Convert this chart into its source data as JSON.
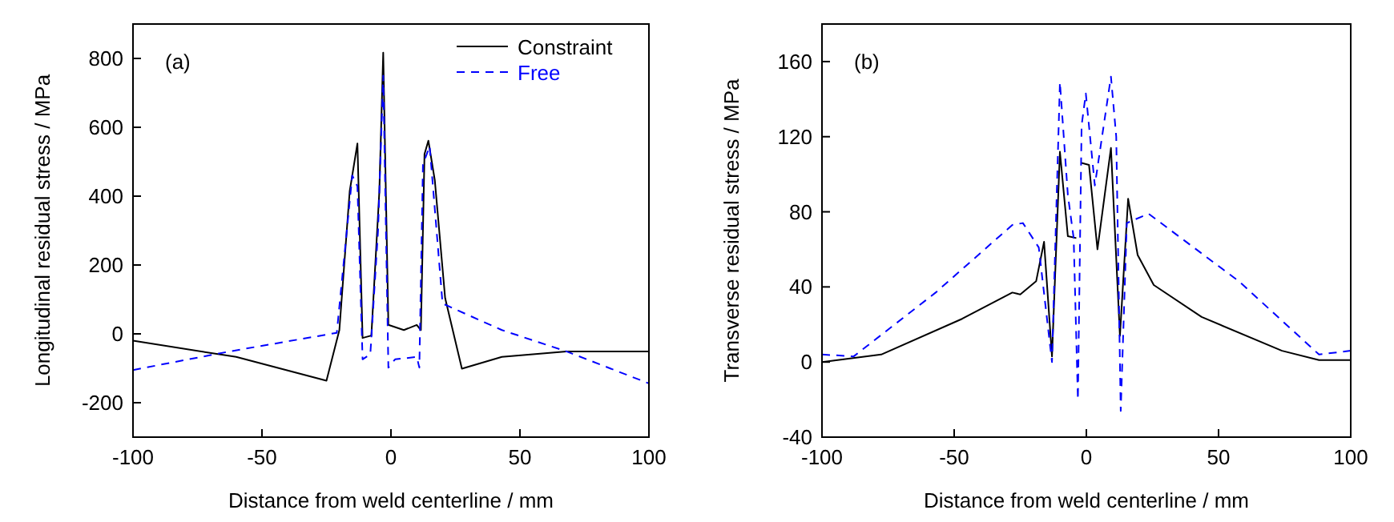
{
  "chart_data": [
    {
      "type": "line",
      "xlabel": "Distance from weld centerline / mm",
      "ylabel": "Longitudinal residual stress / MPa",
      "annotations": [
        "(a)"
      ],
      "xlim": [
        -100,
        100
      ],
      "xticks": [
        -100,
        -50,
        0,
        50,
        100
      ],
      "ylim": [
        -300,
        900
      ],
      "yticks": [
        -200,
        0,
        200,
        400,
        600,
        800
      ],
      "legend": "top right",
      "series": [
        {
          "name": "Constraint",
          "color": "#000000",
          "line_style": "solid",
          "x": [
            -100,
            -60,
            -25,
            -20,
            -16,
            -13,
            -11,
            -7.6,
            -4.5,
            -3,
            -1,
            5,
            10,
            11.6,
            13,
            14.5,
            17,
            21,
            27.5,
            43,
            68,
            100
          ],
          "values": [
            -20,
            -67,
            -136,
            11,
            414,
            553,
            -12,
            -5,
            414,
            817,
            26,
            11,
            26,
            11,
            522,
            561,
            446,
            104,
            -101,
            -67,
            -51,
            -51
          ]
        },
        {
          "name": "Free",
          "color": "#0000ff",
          "line_style": "dashed",
          "x": [
            -100,
            -62.5,
            -21,
            -15,
            -13,
            -11,
            -8,
            -5,
            -3,
            -1,
            1.6,
            10,
            11,
            12.4,
            15,
            20,
            43,
            68,
            100
          ],
          "values": [
            -105,
            -51,
            3,
            460,
            429,
            -74,
            -59,
            300,
            750,
            -98,
            -74,
            -67,
            -98,
            492,
            545,
            88,
            11,
            -51,
            -144
          ]
        }
      ]
    },
    {
      "type": "line",
      "xlabel": "Distance from weld centerline / mm",
      "ylabel": "Transverse residual stress / MPa",
      "annotations": [
        "(b)"
      ],
      "xlim": [
        -100,
        100
      ],
      "xticks": [
        -100,
        -50,
        0,
        50,
        100
      ],
      "ylim": [
        -40,
        180
      ],
      "yticks": [
        -40,
        0,
        40,
        80,
        120,
        160
      ],
      "series": [
        {
          "color": "#000000",
          "line_style": "solid",
          "x": [
            -100,
            -77.6,
            -47,
            -28,
            -25,
            -19,
            -16,
            -13,
            -10,
            -7,
            -3.8,
            -2.8,
            -1.8,
            1,
            4.2,
            9.3,
            12.7,
            15.8,
            19.4,
            25.5,
            43.6,
            74,
            88,
            100
          ],
          "values": [
            0,
            4,
            23,
            37,
            36,
            43,
            64,
            3,
            112,
            67,
            66,
            null,
            106,
            105,
            60,
            114,
            14,
            87,
            57,
            41,
            24,
            6,
            1,
            1
          ]
        },
        {
          "color": "#0000ff",
          "line_style": "dashed",
          "x": [
            -100,
            -88,
            -57,
            -28,
            -24,
            -18,
            -13,
            -10,
            -7,
            -4.8,
            -3.2,
            -1.8,
            -0.2,
            3.2,
            9.3,
            11.3,
            13,
            15.3,
            23.5,
            57.7,
            88,
            100
          ],
          "values": [
            4,
            3,
            37,
            73,
            74,
            61,
            0,
            149,
            89,
            66,
            -20,
            126,
            143,
            94,
            152,
            120,
            -26,
            74,
            79,
            43,
            4,
            6
          ]
        }
      ]
    }
  ]
}
